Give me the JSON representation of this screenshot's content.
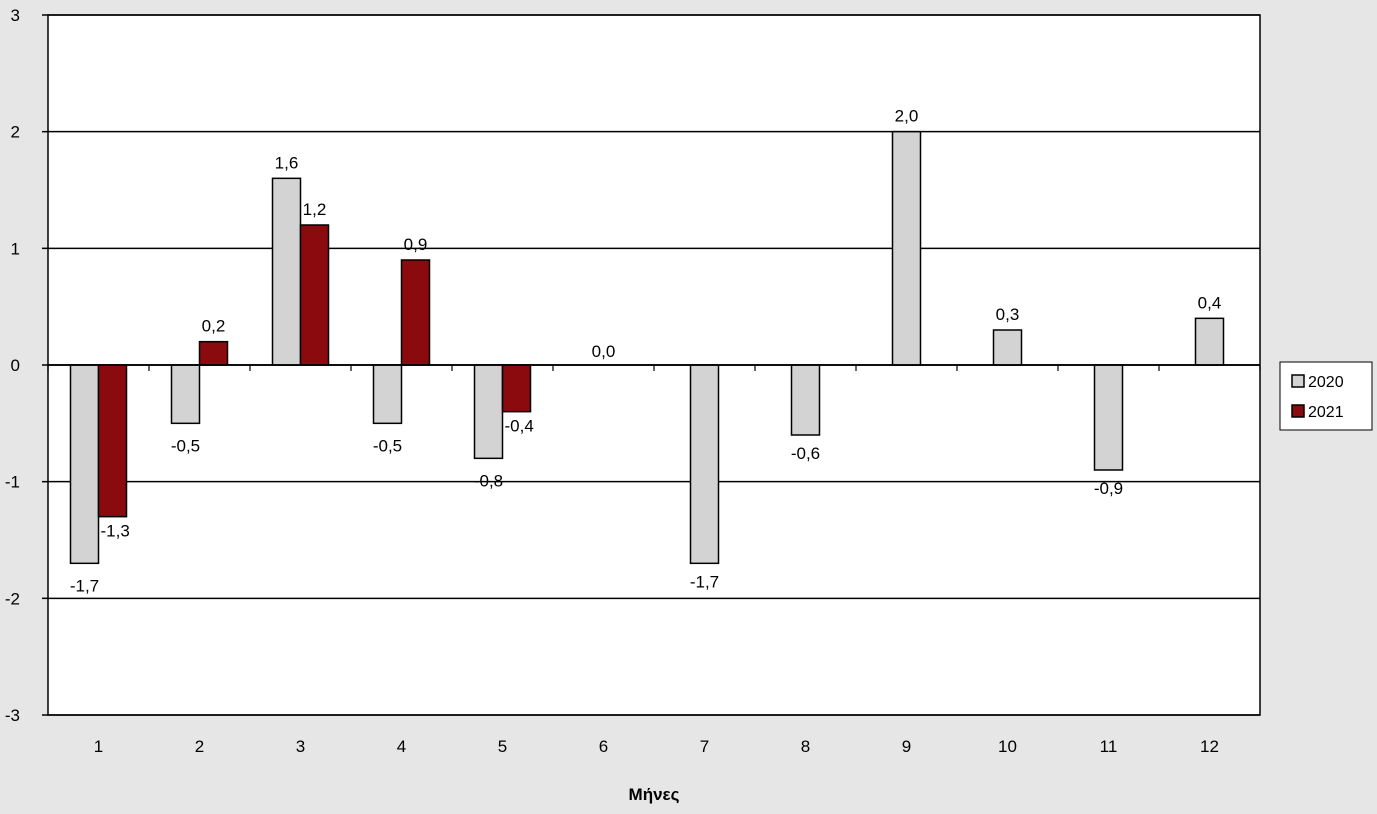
{
  "chart_data": {
    "type": "bar",
    "title": "",
    "xlabel": "Μήνες",
    "ylabel": "",
    "ylim": [
      -3,
      3
    ],
    "yticks": [
      "-3",
      "-2",
      "-1",
      "0",
      "1",
      "2",
      "3"
    ],
    "categories": [
      "1",
      "2",
      "3",
      "4",
      "5",
      "6",
      "7",
      "8",
      "9",
      "10",
      "11",
      "12"
    ],
    "grid": true,
    "legend_position": "right",
    "series": [
      {
        "name": "2020",
        "color": "#d3d3d3",
        "values": [
          -1.7,
          -0.5,
          1.6,
          -0.5,
          -0.8,
          0.0,
          -1.7,
          -0.6,
          2.0,
          0.3,
          -0.9,
          0.4
        ],
        "labels": [
          "-1,7",
          "-0,5",
          "1,6",
          "-0,5",
          "-0,8",
          "0,0",
          "-1,7",
          "-0,6",
          "2,0",
          "0,3",
          "-0,9",
          "0,4"
        ]
      },
      {
        "name": "2021",
        "color": "#8b0a0e",
        "values": [
          -1.3,
          0.2,
          1.2,
          0.9,
          -0.4,
          null,
          null,
          null,
          null,
          null,
          null,
          null
        ],
        "labels": [
          "-1,3",
          "0,2",
          "1,2",
          "0,9",
          "-0,4",
          "",
          "",
          "",
          "",
          "",
          "",
          ""
        ]
      }
    ]
  }
}
